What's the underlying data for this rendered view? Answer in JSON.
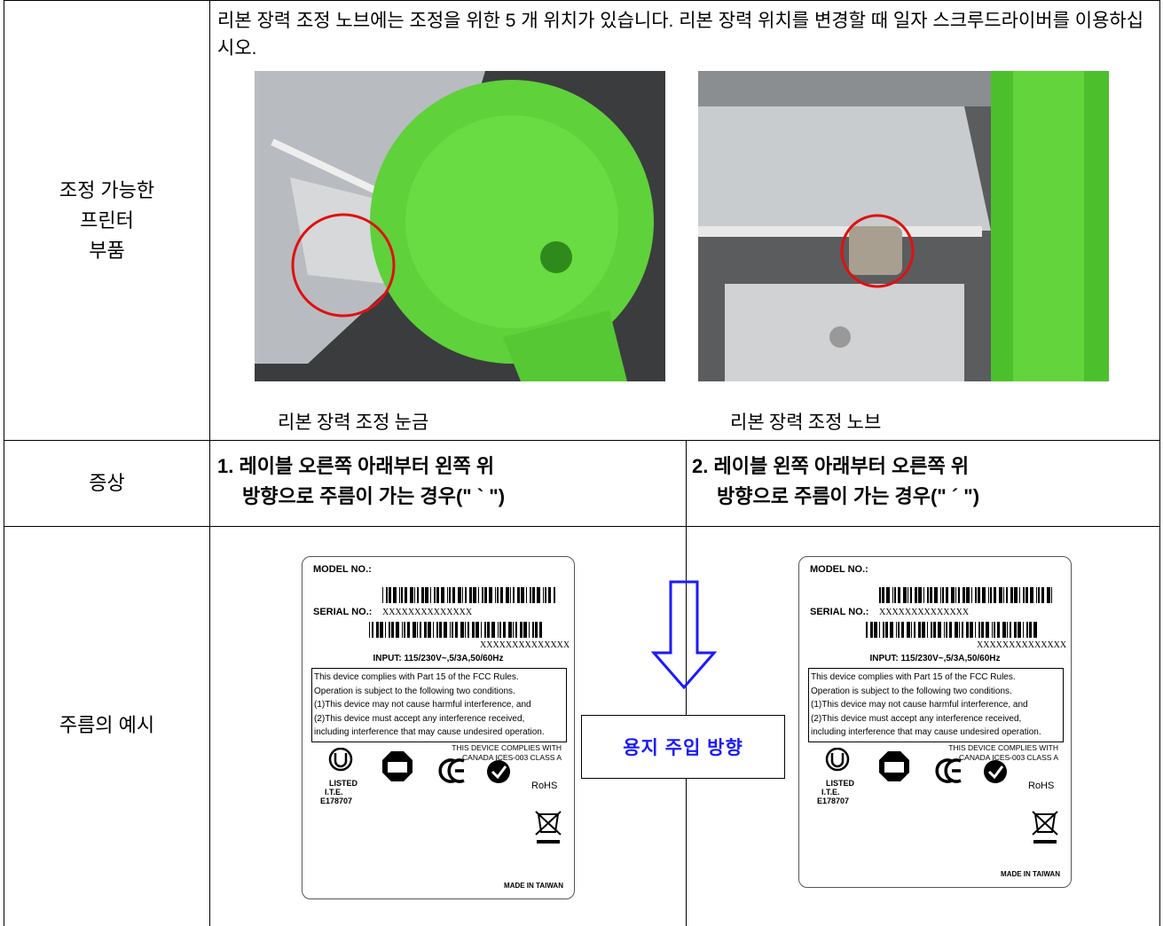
{
  "table": {
    "row1": {
      "header": [
        "조정 가능한",
        "프린터",
        "부품"
      ],
      "text": "리본 장력 조정 노브에는 조정을 위한 5 개 위치가 있습니다. 리본 장력 위치를 변경할 때 일자 스크루드라이버를 이용하십시오.",
      "captions": [
        "리본 장력 조정 눈금",
        "리본 장력 조정 노브"
      ]
    },
    "row2": {
      "header": "증상",
      "cases": [
        {
          "number": "1.",
          "lines": [
            "레이블 오른쪽 아래부터 왼쪽 위",
            "방향으로 주름이 가는 경우(\" ` \")"
          ]
        },
        {
          "number": "2.",
          "lines": [
            "레이블 왼쪽 아래부터 오른쪽 위",
            "방향으로 주름이 가는 경우(\" ´ \")"
          ]
        }
      ]
    },
    "row3": {
      "header": "주름의 예시",
      "direction": "용지 주입 방향",
      "label": {
        "model": "MODEL NO.:",
        "serial": "SERIAL NO.:",
        "serial_code": "XXXXXXXXXXXXXX",
        "code": "XXXXXXXXXXXXXX",
        "input": "INPUT: 115/230V~,5/3A,50/60Hz",
        "fcc": [
          "This device complies with Part 15 of the FCC Rules.",
          "Operation is subject to the following two conditions.",
          "(1)This device may not cause harmful interference, and",
          "(2)This device must accept any interference received,",
          "including interference that may cause undesired operation."
        ],
        "canada": [
          "THIS DEVICE COMPLIES WITH",
          "CANADA ICES-003 CLASS A"
        ],
        "ul": [
          "LISTED",
          "I.T.E.",
          "E178707"
        ],
        "rohs": "RoHS",
        "made": "MADE IN TAIWAN"
      }
    }
  }
}
